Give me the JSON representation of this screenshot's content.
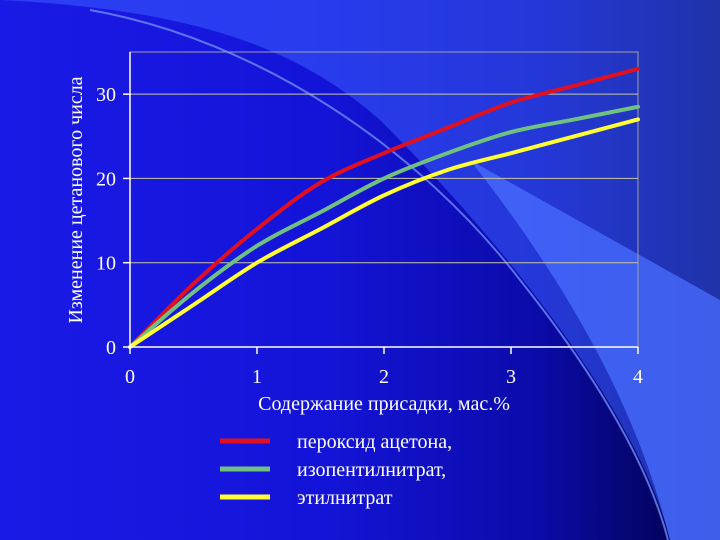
{
  "chart_data": {
    "type": "line",
    "xlabel": "Содержание присадки, мас.%",
    "ylabel": "Изменение цетанового числа",
    "xlim": [
      0,
      4
    ],
    "ylim": [
      0,
      35
    ],
    "x_ticks": [
      "0",
      "1",
      "2",
      "3",
      "4"
    ],
    "y_ticks": [
      "0",
      "10",
      "20",
      "30"
    ],
    "grid": "horizontal",
    "legend_position": "bottom",
    "series": [
      {
        "name": "пероксид ацетона,",
        "color": "#e01020",
        "x": [
          0,
          0.5,
          1,
          1.5,
          2,
          2.5,
          3,
          3.5,
          4
        ],
        "values": [
          0,
          7.5,
          14,
          19.5,
          23,
          26,
          29,
          31,
          33
        ]
      },
      {
        "name": "изопентилнитрат,",
        "color": "#70c080",
        "x": [
          0,
          0.5,
          1,
          1.5,
          2,
          2.5,
          3,
          3.5,
          4
        ],
        "values": [
          0,
          6.5,
          12,
          16,
          20,
          23,
          25.5,
          27,
          28.5
        ]
      },
      {
        "name": "этилнитрат",
        "color": "#ffff33",
        "x": [
          0,
          0.5,
          1,
          1.5,
          2,
          2.5,
          3,
          3.5,
          4
        ],
        "values": [
          0,
          5,
          10,
          14,
          18,
          21,
          23,
          25,
          27
        ]
      }
    ]
  }
}
